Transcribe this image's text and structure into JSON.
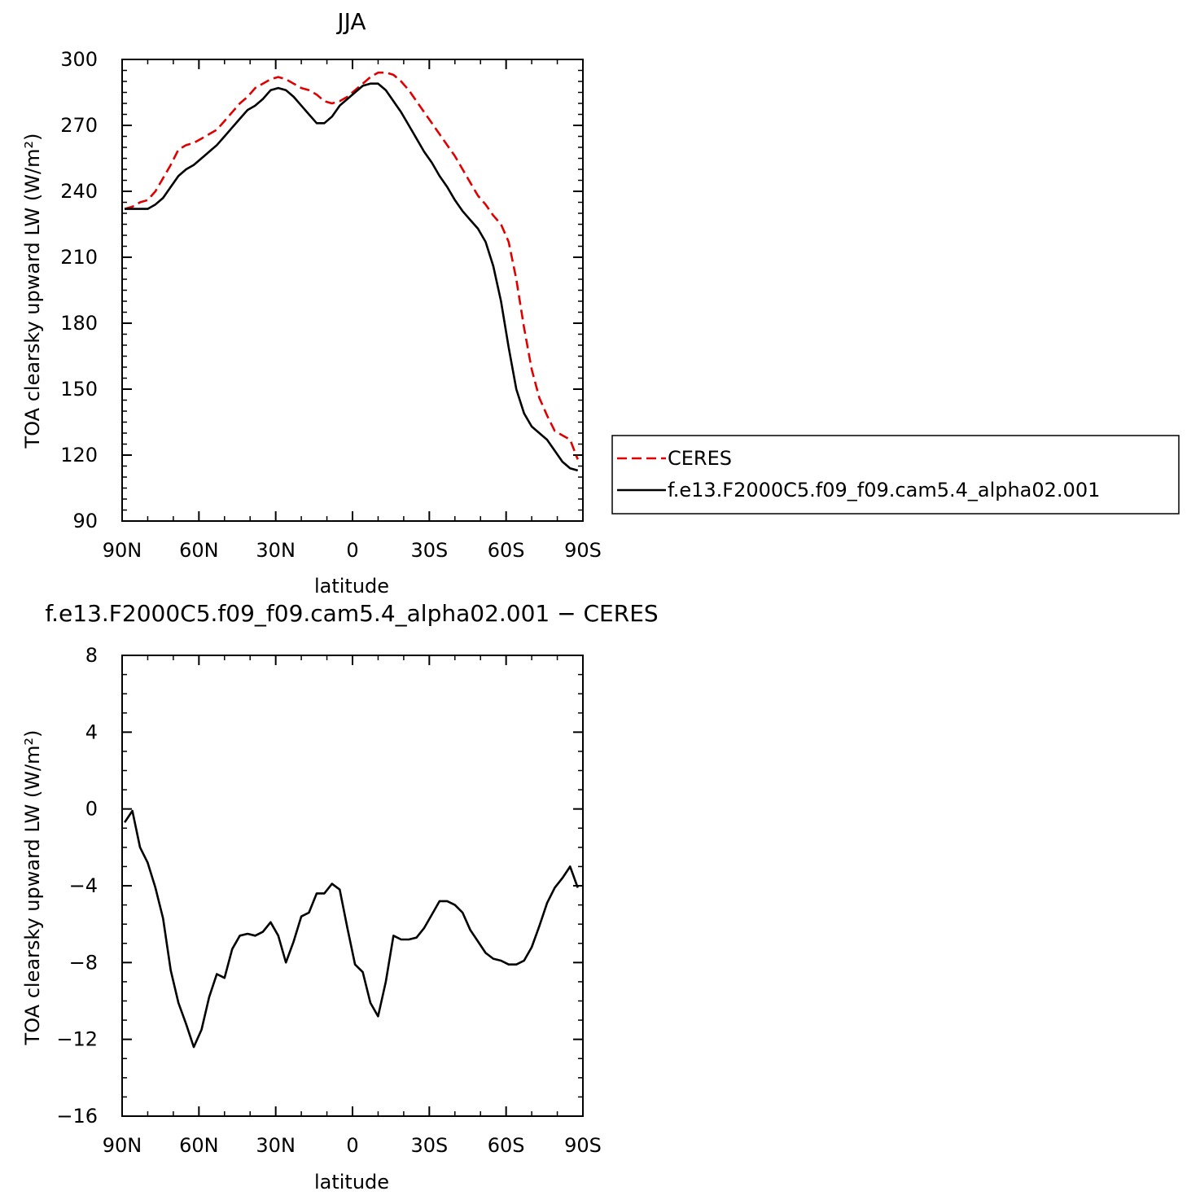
{
  "chart_data": [
    {
      "type": "line",
      "title": "JJA",
      "xlabel": "latitude",
      "ylabel": "TOA clearsky upward LW (W/m²)",
      "x_tick_labels": [
        "90N",
        "60N",
        "30N",
        "0",
        "30S",
        "60S",
        "90S"
      ],
      "x_ticks": [
        90,
        60,
        30,
        0,
        -30,
        -60,
        -90
      ],
      "xlim": [
        90,
        -90
      ],
      "ylim": [
        90,
        300
      ],
      "y_ticks": [
        90,
        120,
        150,
        180,
        210,
        240,
        270,
        300
      ],
      "grid": false,
      "legend": "right",
      "series": [
        {
          "name": "CERES",
          "color": "#e00000",
          "dash": true,
          "x": [
            89,
            86,
            83,
            80,
            77,
            74,
            71,
            68,
            65,
            62,
            59,
            56,
            53,
            50,
            47,
            44,
            41,
            38,
            35,
            32,
            29,
            26,
            23,
            20,
            17,
            14,
            11,
            8,
            5,
            2,
            -1,
            -4,
            -7,
            -10,
            -13,
            -16,
            -19,
            -22,
            -25,
            -28,
            -31,
            -34,
            -37,
            -40,
            -43,
            -46,
            -49,
            -52,
            -55,
            -58,
            -61,
            -64,
            -67,
            -70,
            -73,
            -76,
            -79,
            -82,
            -85,
            -88
          ],
          "y": [
            232,
            233,
            235,
            236,
            240,
            246,
            252,
            259,
            261,
            262,
            264,
            266,
            268,
            272,
            276,
            280,
            283,
            287,
            289,
            291,
            292,
            291,
            289,
            287,
            286,
            284,
            281,
            280,
            281,
            283,
            286,
            289,
            292,
            294,
            294,
            293,
            290,
            286,
            281,
            276,
            271,
            266,
            261,
            256,
            250,
            244,
            238,
            234,
            229,
            225,
            217,
            200,
            178,
            159,
            146,
            138,
            131,
            129,
            127,
            118
          ]
        },
        {
          "name": "f.e13.F2000C5.f09_f09.cam5.4_alpha02.001",
          "color": "#000000",
          "dash": false,
          "x": [
            89,
            86,
            83,
            80,
            77,
            74,
            71,
            68,
            65,
            62,
            59,
            56,
            53,
            50,
            47,
            44,
            41,
            38,
            35,
            32,
            29,
            26,
            23,
            20,
            17,
            14,
            11,
            8,
            5,
            2,
            -1,
            -4,
            -7,
            -10,
            -13,
            -16,
            -19,
            -22,
            -25,
            -28,
            -31,
            -34,
            -37,
            -40,
            -43,
            -46,
            -49,
            -52,
            -55,
            -58,
            -61,
            -64,
            -67,
            -70,
            -73,
            -76,
            -79,
            -82,
            -85,
            -88
          ],
          "y": [
            232,
            232,
            232,
            232,
            234,
            237,
            242,
            247,
            250,
            252,
            255,
            258,
            261,
            265,
            269,
            273,
            277,
            279,
            282,
            286,
            287,
            286,
            283,
            279,
            275,
            271,
            271,
            274,
            279,
            282,
            285,
            288,
            289,
            289,
            286,
            281,
            276,
            270,
            264,
            258,
            253,
            247,
            242,
            236,
            231,
            227,
            223,
            217,
            206,
            190,
            169,
            150,
            139,
            133,
            130,
            127,
            122,
            117,
            114,
            113
          ]
        }
      ]
    },
    {
      "type": "line",
      "title": "f.e13.F2000C5.f09_f09.cam5.4_alpha02.001 − CERES",
      "xlabel": "latitude",
      "ylabel": "TOA clearsky upward LW (W/m²)",
      "x_tick_labels": [
        "90N",
        "60N",
        "30N",
        "0",
        "30S",
        "60S",
        "90S"
      ],
      "x_ticks": [
        90,
        60,
        30,
        0,
        -30,
        -60,
        -90
      ],
      "xlim": [
        90,
        -90
      ],
      "ylim": [
        -16,
        8
      ],
      "y_ticks": [
        -16,
        -12,
        -8,
        -4,
        0,
        4,
        8
      ],
      "y_tick_labels": [
        "−16",
        "−12",
        "−8",
        "−4",
        "0",
        "4",
        "8"
      ],
      "grid": false,
      "series": [
        {
          "color": "#000000",
          "x": [
            89,
            86,
            83,
            80,
            77,
            74,
            71,
            68,
            65,
            62,
            59,
            56,
            53,
            50,
            47,
            44,
            41,
            38,
            35,
            32,
            29,
            26,
            23,
            20,
            17,
            14,
            11,
            8,
            5,
            2,
            -1,
            -4,
            -7,
            -10,
            -13,
            -16,
            -19,
            -22,
            -25,
            -28,
            -31,
            -34,
            -37,
            -40,
            -43,
            -46,
            -49,
            -52,
            -55,
            -58,
            -61,
            -64,
            -67,
            -70,
            -73,
            -76,
            -79,
            -82,
            -85,
            -88
          ],
          "y": [
            -0.7,
            -0.1,
            -2.0,
            -2.8,
            -4.1,
            -5.7,
            -8.4,
            -10.1,
            -11.2,
            -12.4,
            -11.5,
            -9.8,
            -8.6,
            -8.8,
            -7.3,
            -6.6,
            -6.5,
            -6.6,
            -6.4,
            -5.9,
            -6.6,
            -8.0,
            -6.9,
            -5.6,
            -5.4,
            -4.4,
            -4.4,
            -3.9,
            -4.2,
            -6.2,
            -8.1,
            -8.5,
            -10.1,
            -10.8,
            -9.0,
            -6.6,
            -6.8,
            -6.8,
            -6.7,
            -6.2,
            -5.5,
            -4.8,
            -4.8,
            -5.0,
            -5.4,
            -6.3,
            -6.9,
            -7.5,
            -7.8,
            -7.9,
            -8.1,
            -8.1,
            -7.9,
            -7.2,
            -6.1,
            -4.9,
            -4.1,
            -3.6,
            -3.0,
            -4.1
          ]
        }
      ]
    }
  ]
}
